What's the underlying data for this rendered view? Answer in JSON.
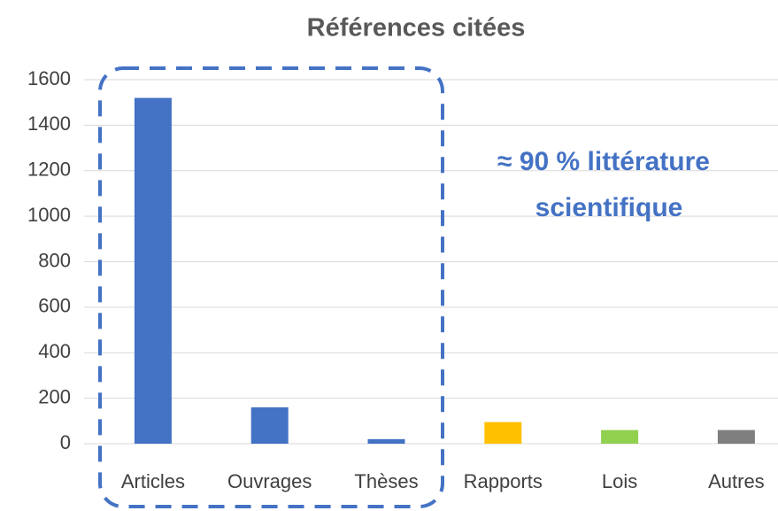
{
  "chart_data": {
    "type": "bar",
    "title": "Références citées",
    "categories": [
      "Articles",
      "Ouvrages",
      "Thèses",
      "Rapports",
      "Lois",
      "Autres"
    ],
    "values": [
      1520,
      160,
      20,
      95,
      60,
      60
    ],
    "colors": [
      "#4472c4",
      "#4472c4",
      "#4472c4",
      "#ffc000",
      "#92d050",
      "#7f7f7f"
    ],
    "ylim": [
      0,
      1600
    ],
    "yticks": [
      0,
      200,
      400,
      600,
      800,
      1000,
      1200,
      1400,
      1600
    ],
    "grid": true,
    "annotation": [
      "≈ 90 % littérature",
      "scientifique"
    ]
  }
}
